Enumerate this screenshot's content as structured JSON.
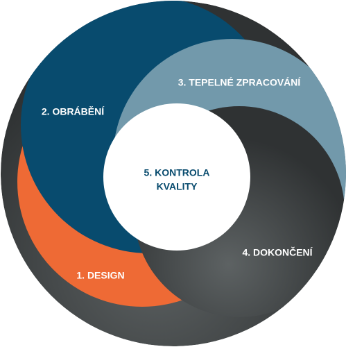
{
  "stages": [
    {
      "label": "1. DESIGN"
    },
    {
      "label": "2. OBRÁBĚNÍ"
    },
    {
      "label": "3. TEPELNÉ ZPRACOVÁNÍ"
    },
    {
      "label": "4. DOKONČENÍ"
    },
    {
      "label_lines": [
        "5. KONTROLA",
        "KVALITY"
      ]
    }
  ]
}
